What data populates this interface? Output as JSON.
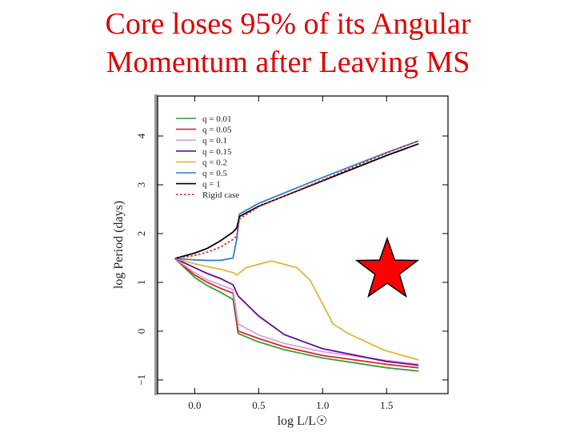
{
  "chart_data": {
    "type": "line",
    "title": [
      "Core loses 95% of its Angular",
      "Momentum after Leaving MS"
    ],
    "xlabel": "log L/L☉",
    "ylabel": "log Period (days)",
    "xlim": [
      -0.29,
      1.98
    ],
    "ylim": [
      -1.28,
      4.82
    ],
    "xticks": [
      {
        "value": 0,
        "label": "0.0"
      },
      {
        "value": 0.5,
        "label": "0.5"
      },
      {
        "value": 1,
        "label": "1.0"
      },
      {
        "value": 1.5,
        "label": "1.5"
      }
    ],
    "yticks": [
      {
        "value": -1,
        "label": "−1"
      },
      0,
      1,
      2,
      3,
      4
    ],
    "series": [
      {
        "name": "q = 0.01",
        "color": "#3a9a3a",
        "linestyle": "solid",
        "x": [
          -0.155,
          0,
          0.1,
          0.2,
          0.3,
          0.34,
          0.5,
          0.7,
          1.0,
          1.5,
          1.75
        ],
        "values": [
          1.49,
          1.1,
          0.93,
          0.8,
          0.65,
          -0.05,
          -0.22,
          -0.38,
          -0.55,
          -0.75,
          -0.82
        ]
      },
      {
        "name": "q = 0.05",
        "color": "#d62728",
        "linestyle": "solid",
        "x": [
          -0.155,
          0,
          0.1,
          0.2,
          0.3,
          0.34,
          0.5,
          0.7,
          1.0,
          1.5,
          1.75
        ],
        "values": [
          1.49,
          1.15,
          1.0,
          0.88,
          0.78,
          0.0,
          -0.15,
          -0.32,
          -0.5,
          -0.68,
          -0.75
        ]
      },
      {
        "name": "q = 0.1",
        "color": "#d9a0e0",
        "linestyle": "solid",
        "x": [
          -0.155,
          0,
          0.1,
          0.2,
          0.3,
          0.34,
          0.5,
          0.7,
          1.0,
          1.5,
          1.75
        ],
        "values": [
          1.49,
          1.2,
          1.05,
          0.95,
          0.85,
          0.15,
          -0.08,
          -0.25,
          -0.42,
          -0.6,
          -0.68
        ]
      },
      {
        "name": "q = 0.15",
        "color": "#5b0f91",
        "linestyle": "solid",
        "x": [
          -0.155,
          0,
          0.1,
          0.2,
          0.3,
          0.34,
          0.5,
          0.7,
          1.0,
          1.5,
          1.75
        ],
        "values": [
          1.49,
          1.3,
          1.18,
          1.08,
          0.95,
          0.72,
          0.31,
          -0.07,
          -0.36,
          -0.62,
          -0.7
        ]
      },
      {
        "name": "q = 0.2",
        "color": "#e6b33a",
        "linestyle": "solid",
        "x": [
          -0.155,
          0,
          0.1,
          0.2,
          0.3,
          0.33,
          0.4,
          0.6,
          0.8,
          0.9,
          1.0,
          1.08,
          1.2,
          1.48,
          1.75
        ],
        "values": [
          1.49,
          1.38,
          1.32,
          1.27,
          1.2,
          1.15,
          1.3,
          1.44,
          1.3,
          1.05,
          0.56,
          0.15,
          -0.05,
          -0.39,
          -0.59
        ]
      },
      {
        "name": "q = 0.5",
        "color": "#2a7fc8",
        "linestyle": "solid",
        "x": [
          -0.155,
          0,
          0.1,
          0.2,
          0.3,
          0.33,
          0.35,
          0.5,
          1.0,
          1.5,
          1.75
        ],
        "values": [
          1.49,
          1.46,
          1.45,
          1.45,
          1.5,
          1.9,
          2.4,
          2.62,
          3.15,
          3.66,
          3.9
        ]
      },
      {
        "name": "q = 1",
        "color": "#000000",
        "linestyle": "solid",
        "x": [
          -0.155,
          0,
          0.1,
          0.2,
          0.3,
          0.33,
          0.35,
          0.5,
          1.0,
          1.5,
          1.75
        ],
        "values": [
          1.49,
          1.6,
          1.7,
          1.85,
          2.03,
          2.12,
          2.35,
          2.56,
          3.08,
          3.6,
          3.84
        ]
      },
      {
        "name": "Rigid case",
        "color": "#d62728",
        "linestyle": "dotted",
        "x": [
          -0.155,
          0,
          0.1,
          0.2,
          0.3,
          0.33,
          0.35,
          0.5,
          1.0,
          1.5,
          1.75
        ],
        "values": [
          1.49,
          1.55,
          1.62,
          1.72,
          1.88,
          1.95,
          2.3,
          2.55,
          3.1,
          3.65,
          3.9
        ]
      }
    ]
  }
}
